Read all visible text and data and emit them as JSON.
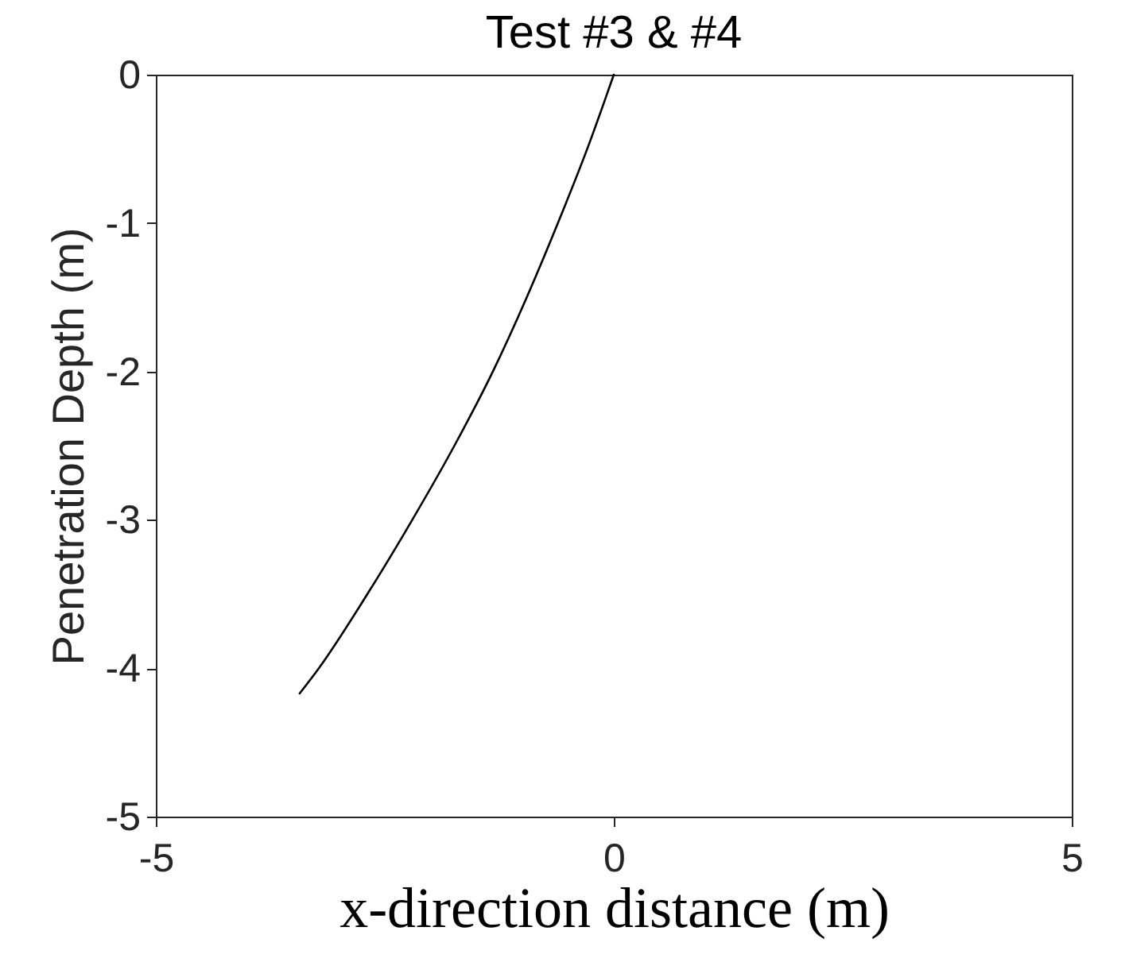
{
  "chart_data": {
    "type": "line",
    "title": "Test #3 & #4",
    "xlabel": "x-direction distance (m)",
    "ylabel": "Penetration Depth (m)",
    "series": [
      {
        "color": "#000000",
        "x": [
          0,
          -0.29,
          -0.61,
          -0.95,
          -1.32,
          -1.74,
          -2.2,
          -2.69,
          -3.22,
          -3.43
        ],
        "values": [
          0,
          -0.5,
          -1,
          -1.5,
          -2,
          -2.5,
          -3,
          -3.5,
          -4,
          -4.17
        ]
      }
    ],
    "xlim": [
      -5,
      5
    ],
    "ylim": [
      -5,
      0
    ],
    "xticks": [
      -5,
      0,
      5
    ],
    "yticks": [
      0,
      -1,
      -2,
      -3,
      -4,
      -5
    ],
    "grid": false
  }
}
